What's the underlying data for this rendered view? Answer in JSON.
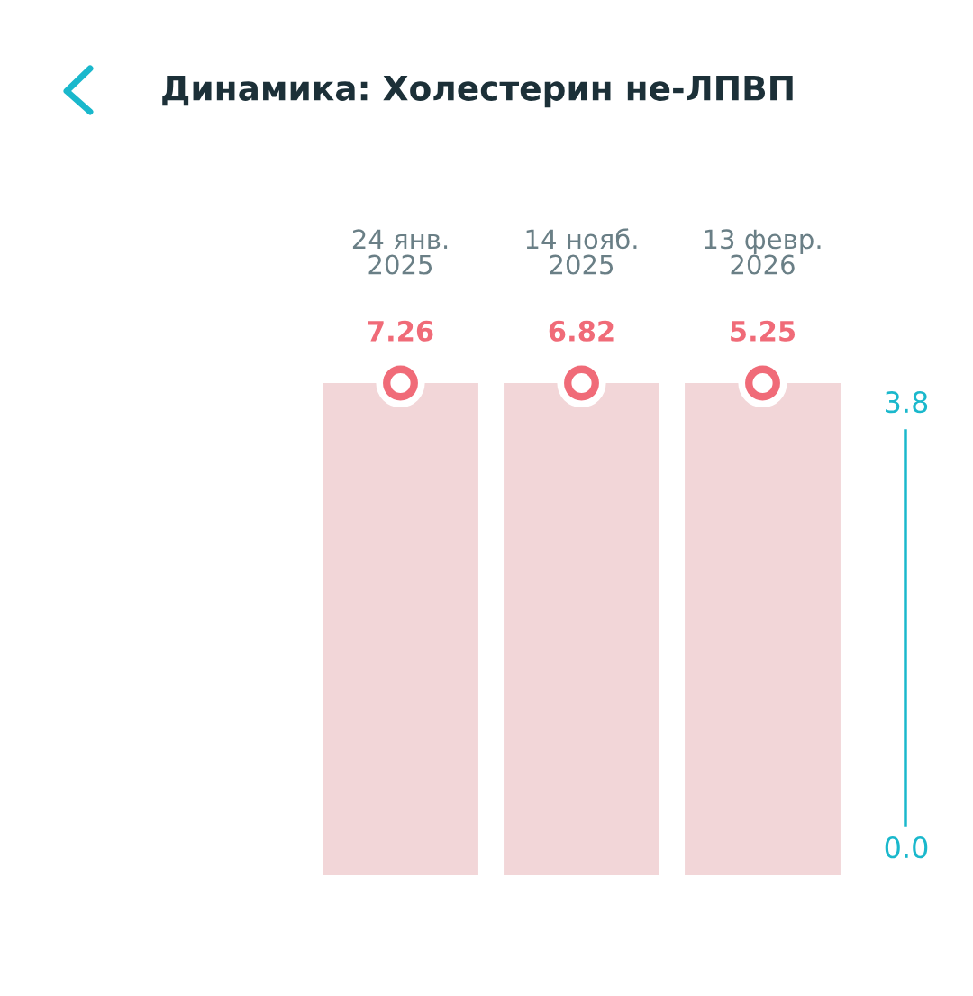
{
  "chart_data": {
    "type": "other",
    "title": "Динамика: Холестерин не-ЛПВП",
    "categories": [
      "24 янв.\n2025",
      "14 нояб.\n2025",
      "13 февр.\n2026"
    ],
    "values": [
      7.26,
      6.82,
      5.25
    ],
    "color": "#f06b78",
    "data_labels": true,
    "annotations": [
      "3.8",
      "0.0"
    ]
  }
}
